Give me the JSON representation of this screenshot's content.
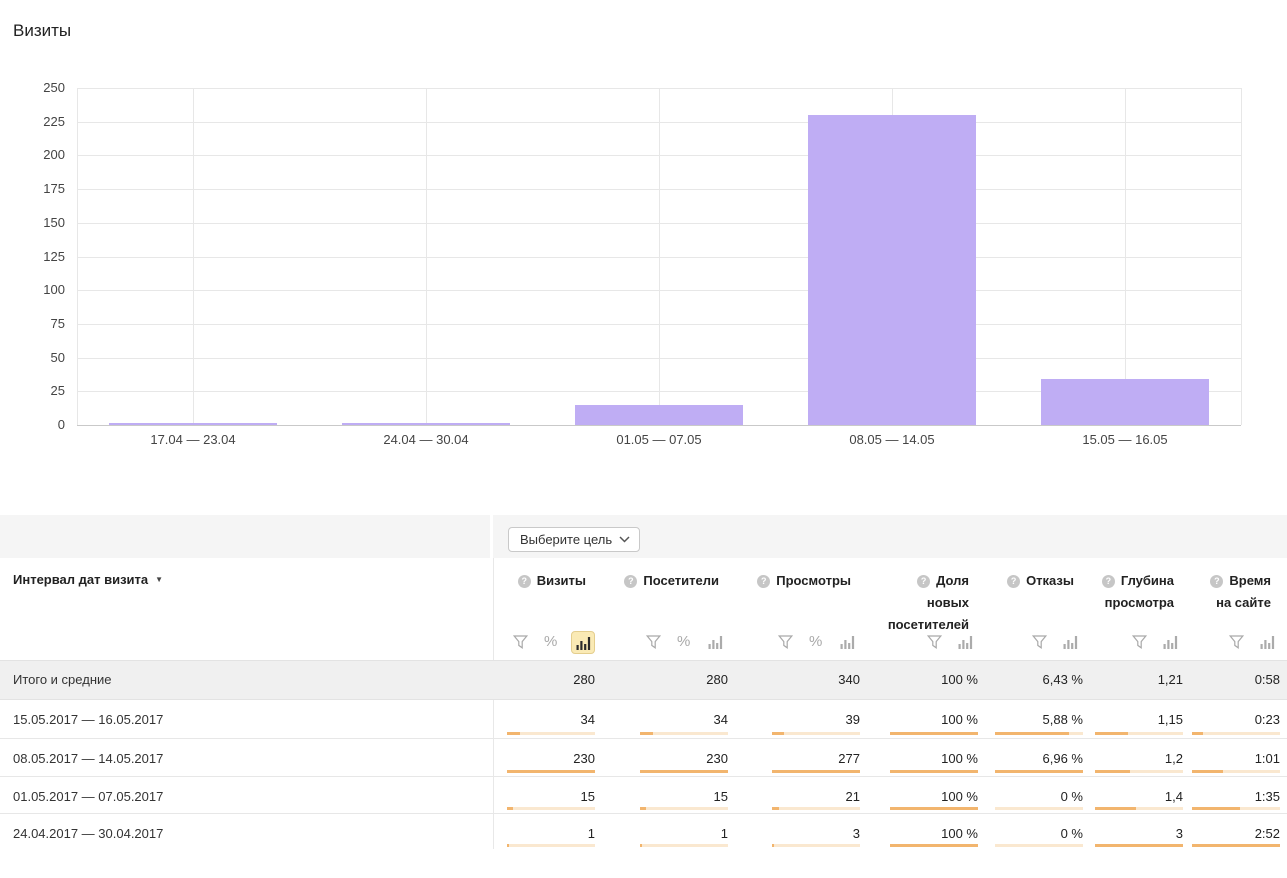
{
  "page_title": "Визиты",
  "chart_data": {
    "type": "bar",
    "title": "Визиты",
    "categories": [
      "17.04 — 23.04",
      "24.04 — 30.04",
      "01.05 — 07.05",
      "08.05 — 14.05",
      "15.05 — 16.05"
    ],
    "values": [
      1,
      1,
      15,
      230,
      34
    ],
    "xlabel": "",
    "ylabel": "",
    "ylim": [
      0,
      250
    ],
    "ytick_step": 25,
    "grid": true,
    "legend": false,
    "bar_color": "#bfadf4"
  },
  "goal_selector": {
    "label": "Выберите цель"
  },
  "table": {
    "row_dimension": {
      "label": "Интервал дат визита",
      "sort_indicator": "▼"
    },
    "columns": [
      {
        "lines": [
          "Визиты"
        ],
        "tools": [
          "filter",
          "percent",
          "chart"
        ],
        "active_tool": "chart"
      },
      {
        "lines": [
          "Посетители"
        ],
        "tools": [
          "filter",
          "percent",
          "chart"
        ],
        "active_tool": ""
      },
      {
        "lines": [
          "Просмотры"
        ],
        "tools": [
          "filter",
          "percent",
          "chart"
        ],
        "active_tool": ""
      },
      {
        "lines": [
          "Доля",
          "новых",
          "посетителей"
        ],
        "tools": [
          "filter",
          "chart"
        ],
        "active_tool": ""
      },
      {
        "lines": [
          "Отказы"
        ],
        "tools": [
          "filter",
          "chart"
        ],
        "active_tool": ""
      },
      {
        "lines": [
          "Глубина",
          "просмотра"
        ],
        "tools": [
          "filter",
          "chart"
        ],
        "active_tool": ""
      },
      {
        "lines": [
          "Время",
          "на сайте"
        ],
        "tools": [
          "filter",
          "chart"
        ],
        "active_tool": ""
      }
    ],
    "totals": {
      "label": "Итого и средние",
      "values": [
        "280",
        "280",
        "340",
        "100 %",
        "6,43 %",
        "1,21",
        "0:58"
      ]
    },
    "rows": [
      {
        "label": "15.05.2017 — 16.05.2017",
        "values": [
          "34",
          "34",
          "39",
          "100 %",
          "5,88 %",
          "1,15",
          "0:23"
        ],
        "bar_fills": [
          0.15,
          0.15,
          0.14,
          1,
          0.84,
          0.38,
          0.13
        ]
      },
      {
        "label": "08.05.2017 — 14.05.2017",
        "values": [
          "230",
          "230",
          "277",
          "100 %",
          "6,96 %",
          "1,2",
          "1:01"
        ],
        "bar_fills": [
          1,
          1,
          1,
          1,
          1,
          0.4,
          0.35
        ]
      },
      {
        "label": "01.05.2017 — 07.05.2017",
        "values": [
          "15",
          "15",
          "21",
          "100 %",
          "0 %",
          "1,4",
          "1:35"
        ],
        "bar_fills": [
          0.065,
          0.065,
          0.076,
          1,
          0,
          0.47,
          0.55
        ]
      },
      {
        "label": "24.04.2017 — 30.04.2017",
        "values": [
          "1",
          "1",
          "3",
          "100 %",
          "0 %",
          "3",
          "2:52"
        ],
        "bar_fills": [
          0.01,
          0.01,
          0.011,
          1,
          0,
          1,
          1
        ]
      }
    ]
  },
  "colors": {
    "bar": "#bfadf4",
    "meter_track": "#fae8d0",
    "meter_fill": "#f2b56e",
    "active_tool_bg": "#faeab5",
    "active_tool_border": "#e4ce8e"
  }
}
